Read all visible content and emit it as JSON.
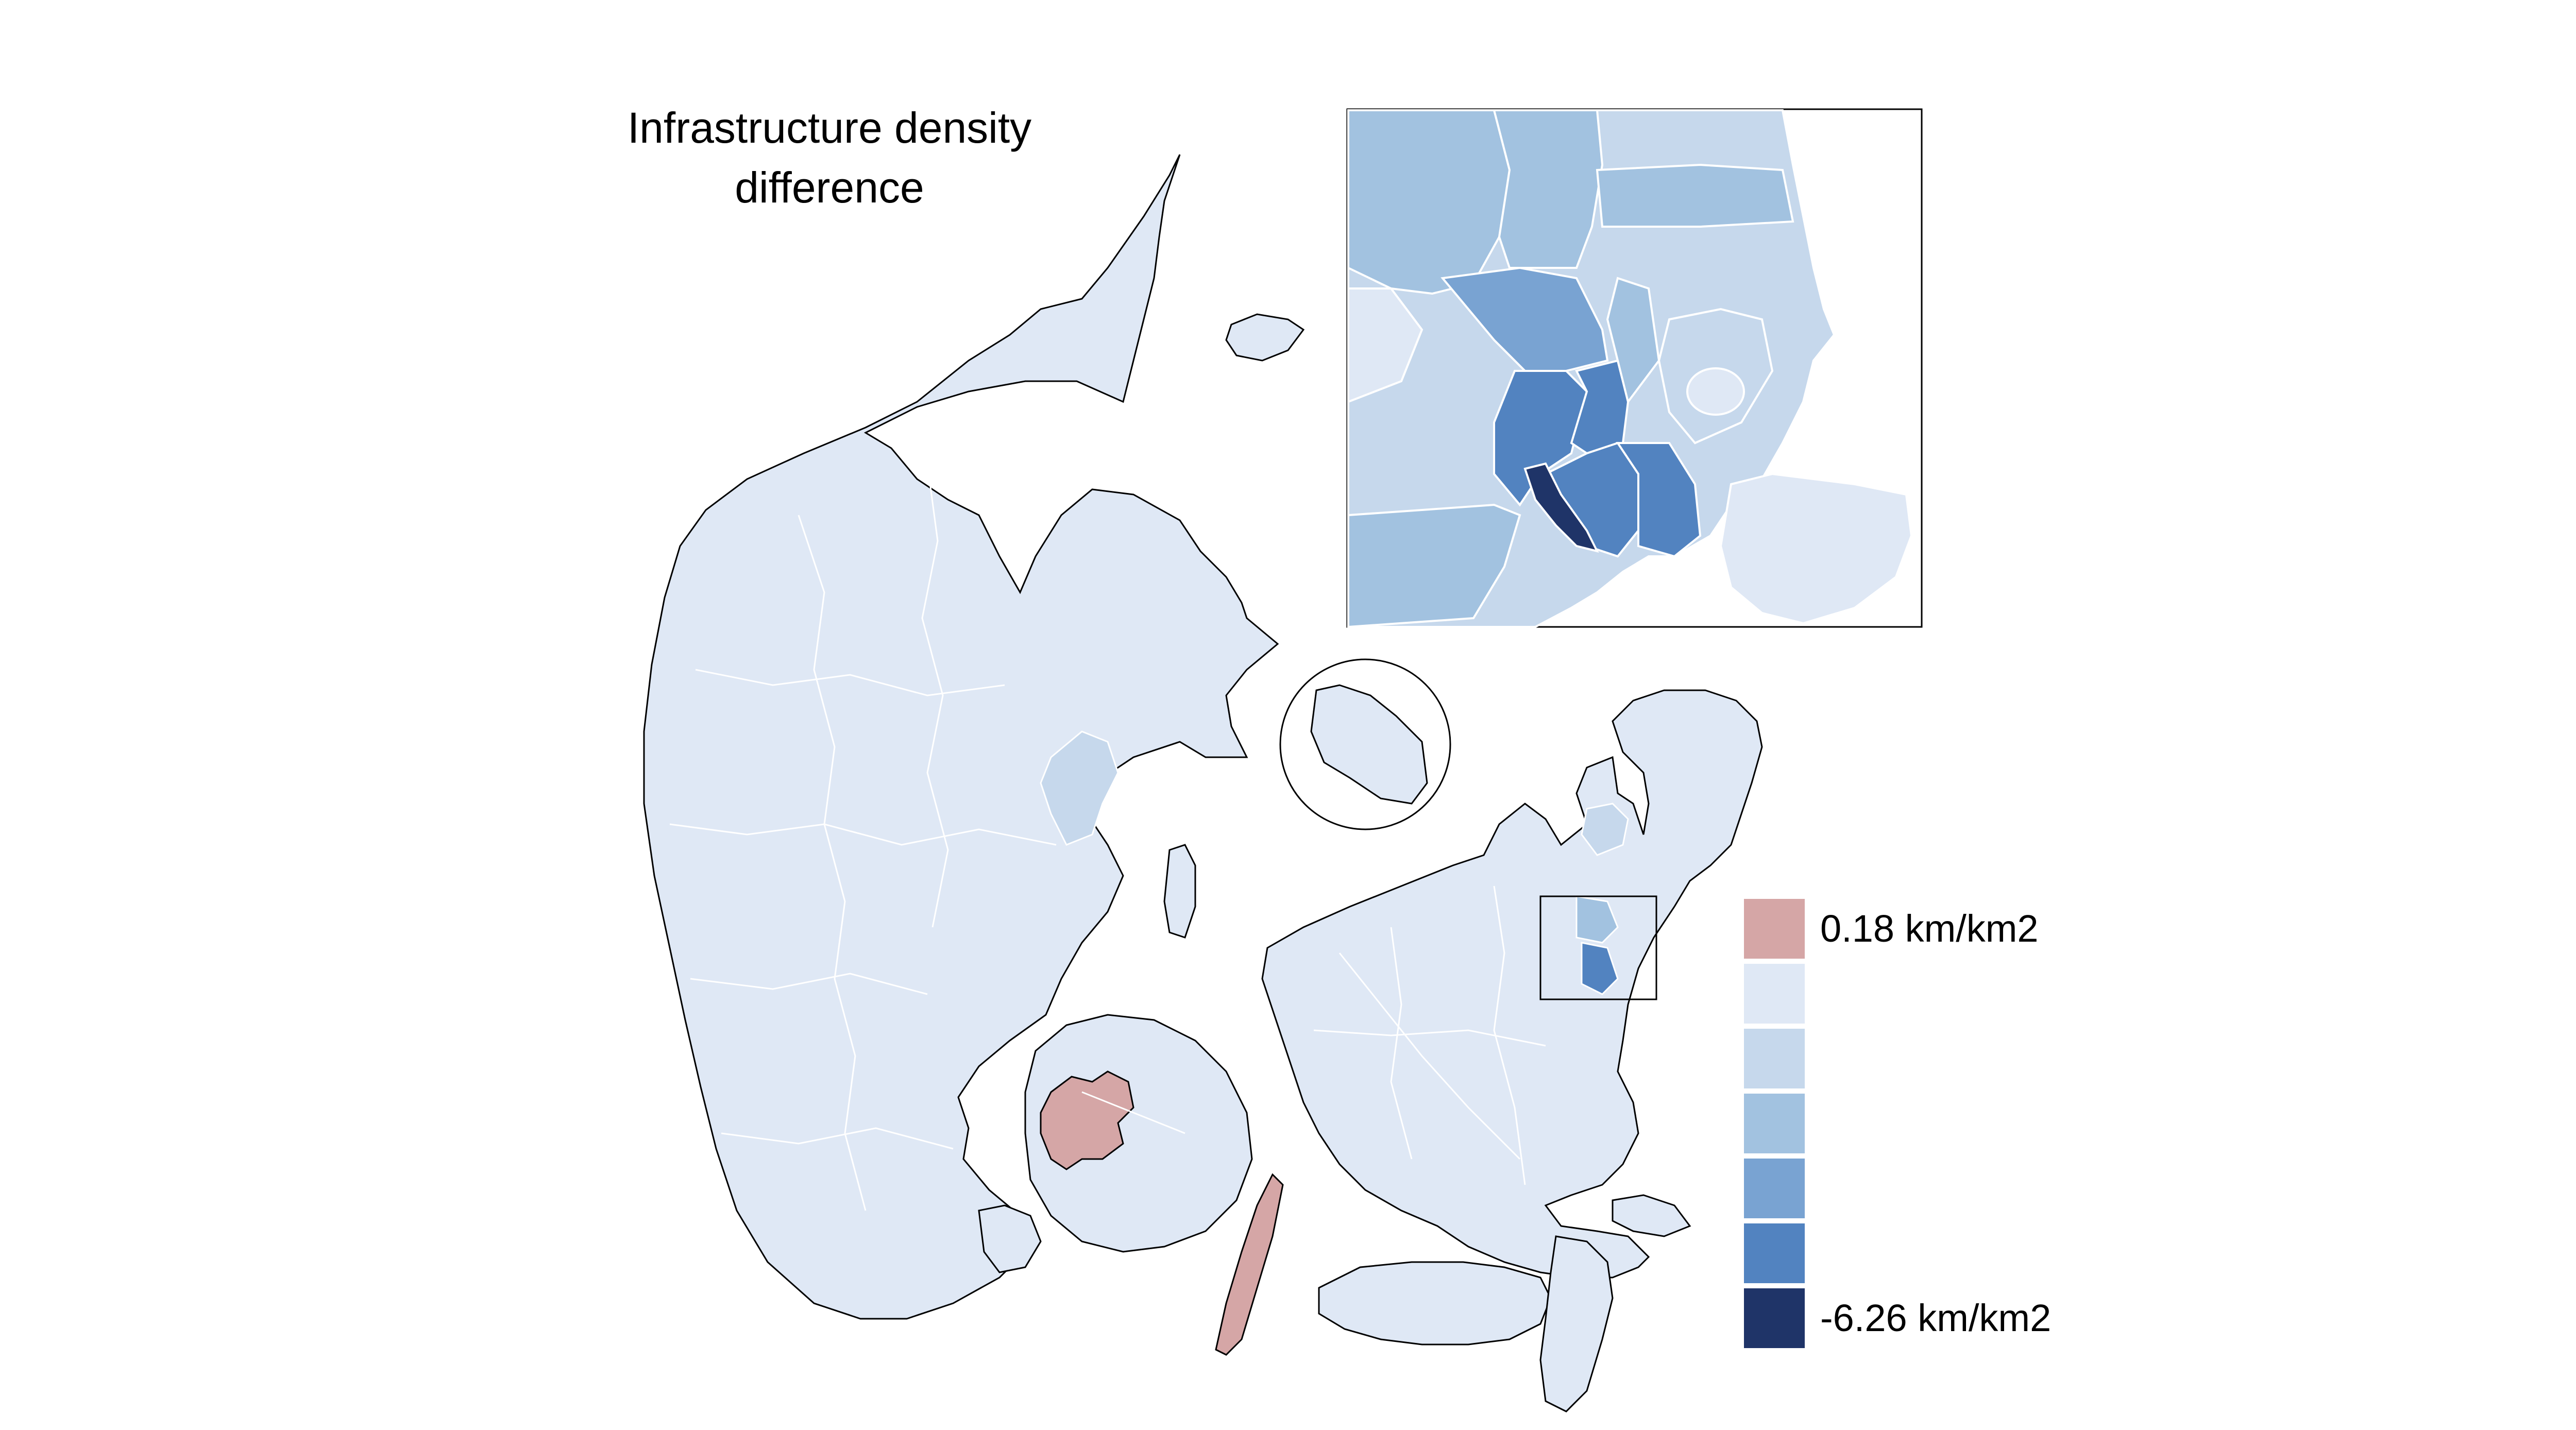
{
  "title_line1": "Infrastructure density",
  "title_line2": "difference",
  "legend": {
    "items": [
      {
        "color": "#d5a6a6",
        "label": "0.18 km/km2"
      },
      {
        "color": "#dfe8f5",
        "label": ""
      },
      {
        "color": "#c6d8ec",
        "label": ""
      },
      {
        "color": "#a2c2e0",
        "label": ""
      },
      {
        "color": "#79a3d2",
        "label": ""
      },
      {
        "color": "#5283c0",
        "label": ""
      },
      {
        "color": "#1f3468",
        "label": "-6.26 km/km2"
      }
    ]
  },
  "colors": {
    "land": "#dfe8f5",
    "positive": "#d5a6a6",
    "outline": "#000000",
    "borders": "#ffffff"
  }
}
